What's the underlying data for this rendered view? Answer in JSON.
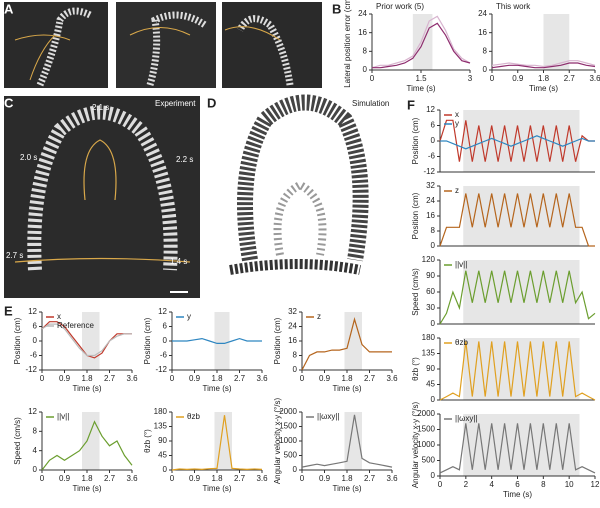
{
  "panel_labels": [
    "A",
    "B",
    "C",
    "D",
    "E",
    "F"
  ],
  "photos": {
    "experiment": "Experiment",
    "simulation": "Simulation",
    "times": [
      "2.1 s",
      "2.0 s",
      "2.2 s",
      "2.7 s",
      "1.4 s"
    ]
  },
  "chart_data": [
    {
      "type": "line",
      "title": "Prior work (5)",
      "ylabel": "Lateral position error (cm)",
      "xlabel": "Time (s)",
      "x": [
        0,
        0.25,
        0.5,
        0.75,
        1,
        1.25,
        1.5,
        1.75,
        2,
        2.25,
        2.5,
        2.75,
        3
      ],
      "xlim": [
        0,
        3
      ],
      "ylim": [
        0,
        24
      ],
      "xticks": [
        0,
        1.5,
        3
      ],
      "yticks": [
        0,
        8,
        16,
        24
      ],
      "shade": [
        1.25,
        1.85
      ],
      "series": [
        {
          "color": "#d8b4cf",
          "values": [
            1,
            2,
            2,
            3,
            4,
            6,
            12,
            21,
            23,
            17,
            9,
            5,
            3
          ]
        },
        {
          "color": "#8e2c6e",
          "values": [
            1,
            1,
            1.5,
            2,
            3,
            5,
            10,
            18,
            20,
            15,
            8,
            4,
            3
          ]
        }
      ]
    },
    {
      "type": "line",
      "title": "This work",
      "xlabel": "Time (s)",
      "x": [
        0,
        0.3,
        0.6,
        0.9,
        1.2,
        1.5,
        1.8,
        2.1,
        2.4,
        2.7,
        3,
        3.3,
        3.6
      ],
      "xlim": [
        0,
        3.6
      ],
      "ylim": [
        0,
        24
      ],
      "xticks": [
        0,
        0.9,
        1.8,
        2.7,
        3.6
      ],
      "yticks": [
        0,
        8,
        16,
        24
      ],
      "shade": [
        1.8,
        2.7
      ],
      "series": [
        {
          "color": "#d8b4cf",
          "values": [
            2,
            2.5,
            3,
            2.5,
            2,
            2,
            1.5,
            2,
            3,
            4,
            4,
            3,
            2
          ]
        },
        {
          "color": "#8e2c6e",
          "values": [
            1,
            1.5,
            2,
            2,
            1.5,
            1,
            1,
            1.5,
            2,
            3,
            3,
            2,
            1.5
          ]
        }
      ]
    },
    {
      "type": "line",
      "ylabel": "Position (cm)",
      "xlabel": "Time (s)",
      "x": [
        0,
        0.3,
        0.6,
        0.9,
        1.2,
        1.5,
        1.8,
        2.1,
        2.4,
        2.7,
        3,
        3.3,
        3.6
      ],
      "xlim": [
        0,
        3.6
      ],
      "ylim": [
        -12,
        12
      ],
      "xticks": [
        0,
        0.9,
        1.8,
        2.7,
        3.6
      ],
      "yticks": [
        -12,
        -6,
        0,
        6,
        12
      ],
      "shade": [
        1.6,
        2.3
      ],
      "series": [
        {
          "name": "x",
          "color": "#c0392b",
          "values": [
            5,
            8,
            8,
            6,
            2,
            -2,
            -6,
            -7,
            -5,
            0,
            3,
            3,
            3
          ]
        },
        {
          "name": "Reference",
          "color": "#bbbbbb",
          "values": [
            5,
            7,
            7,
            5,
            1,
            -3,
            -6,
            -6,
            -4,
            0,
            2,
            3,
            3
          ]
        }
      ]
    },
    {
      "type": "line",
      "ylabel": "Position (cm)",
      "xlabel": "Time (s)",
      "x": [
        0,
        0.3,
        0.6,
        0.9,
        1.2,
        1.5,
        1.8,
        2.1,
        2.4,
        2.7,
        3,
        3.3,
        3.6
      ],
      "xlim": [
        0,
        3.6
      ],
      "ylim": [
        -12,
        12
      ],
      "xticks": [
        0,
        0.9,
        1.8,
        2.7,
        3.6
      ],
      "yticks": [
        -12,
        -6,
        0,
        6,
        12
      ],
      "shade": [
        1.7,
        2.3
      ],
      "series": [
        {
          "name": "y",
          "color": "#2e86c1",
          "values": [
            0,
            0,
            0,
            0.5,
            1,
            0,
            -1,
            -1,
            0,
            1,
            0,
            0,
            0
          ]
        }
      ]
    },
    {
      "type": "line",
      "ylabel": "Position (cm)",
      "xlabel": "Time (s)",
      "x": [
        0,
        0.3,
        0.6,
        0.9,
        1.2,
        1.5,
        1.8,
        2.1,
        2.4,
        2.7,
        3,
        3.3,
        3.6
      ],
      "xlim": [
        0,
        3.6
      ],
      "ylim": [
        0,
        32
      ],
      "xticks": [
        0,
        0.9,
        1.8,
        2.7,
        3.6
      ],
      "yticks": [
        0,
        8,
        16,
        24,
        32
      ],
      "shade": [
        1.7,
        2.4
      ],
      "series": [
        {
          "name": "z",
          "color": "#b5651d",
          "values": [
            0,
            8,
            10,
            10,
            11,
            11,
            12,
            28,
            14,
            10,
            10,
            10,
            10
          ]
        }
      ]
    },
    {
      "type": "line",
      "ylabel": "Speed (cm/s)",
      "xlabel": "Time (s)",
      "x": [
        0,
        0.3,
        0.6,
        0.9,
        1.2,
        1.5,
        1.8,
        2.1,
        2.4,
        2.7,
        3,
        3.3,
        3.6
      ],
      "xlim": [
        0,
        3.6
      ],
      "ylim": [
        0,
        12
      ],
      "xticks": [
        0,
        0.9,
        1.8,
        2.7,
        3.6
      ],
      "yticks": [
        0,
        4,
        8,
        12
      ],
      "shade": [
        1.6,
        2.3
      ],
      "series": [
        {
          "name": "||v||",
          "color": "#6b9e2f",
          "values": [
            0,
            2,
            3,
            2,
            3,
            4,
            6,
            10,
            7,
            5,
            6,
            3,
            1
          ]
        }
      ]
    },
    {
      "type": "line",
      "ylabel": "θzb (°)",
      "xlabel": "Time (s)",
      "x": [
        0,
        0.3,
        0.6,
        0.9,
        1.2,
        1.5,
        1.8,
        2.1,
        2.4,
        2.7,
        3,
        3.3,
        3.6
      ],
      "xlim": [
        0,
        3.6
      ],
      "ylim": [
        0,
        180
      ],
      "xticks": [
        0,
        0.9,
        1.8,
        2.7,
        3.6
      ],
      "yticks": [
        0,
        45,
        90,
        135,
        180
      ],
      "shade": [
        1.7,
        2.4
      ],
      "series": [
        {
          "name": "θzb",
          "color": "#e0a020",
          "values": [
            0,
            3,
            2,
            3,
            2,
            4,
            5,
            170,
            5,
            3,
            2,
            3,
            2
          ]
        }
      ]
    },
    {
      "type": "line",
      "ylabel": "Angular velocity x-y (°/s)",
      "xlabel": "Time (s)",
      "x": [
        0,
        0.3,
        0.6,
        0.9,
        1.2,
        1.5,
        1.8,
        2.1,
        2.4,
        2.7,
        3,
        3.3,
        3.6
      ],
      "xlim": [
        0,
        3.6
      ],
      "ylim": [
        0,
        2000
      ],
      "xticks": [
        0,
        0.9,
        1.8,
        2.7,
        3.6
      ],
      "yticks": [
        0,
        500,
        1000,
        1500,
        2000
      ],
      "shade": [
        1.7,
        2.4
      ],
      "series": [
        {
          "name": "||ωxy||",
          "color": "#777777",
          "values": [
            100,
            150,
            200,
            150,
            200,
            250,
            300,
            1900,
            400,
            250,
            200,
            150,
            100
          ]
        }
      ]
    },
    {
      "type": "line",
      "ylabel": "Position (cm)",
      "x": [
        0,
        0.5,
        1,
        1.5,
        2,
        2.5,
        3,
        3.5,
        4,
        4.5,
        5,
        5.5,
        6,
        6.5,
        7,
        7.5,
        8,
        8.5,
        9,
        9.5,
        10,
        10.5,
        11,
        11.5,
        12
      ],
      "xlim": [
        0,
        12
      ],
      "ylim": [
        -12,
        12
      ],
      "yticks": [
        -12,
        -6,
        0,
        6,
        12
      ],
      "shade": [
        1.8,
        10.8
      ],
      "series": [
        {
          "name": "x",
          "color": "#c0392b",
          "values": [
            0,
            8,
            8,
            -8,
            8,
            -8,
            6,
            -8,
            6,
            -8,
            6,
            -8,
            6,
            -8,
            6,
            -8,
            6,
            -8,
            6,
            -8,
            6,
            -8,
            2,
            0,
            0
          ]
        },
        {
          "name": "y",
          "color": "#2e86c1",
          "values": [
            0,
            0,
            -1,
            -2,
            -3,
            -2,
            -1,
            0,
            1,
            0,
            -1,
            -2,
            -1,
            0,
            1,
            2,
            1,
            0,
            -1,
            -2,
            -1,
            0,
            1,
            0,
            0
          ]
        }
      ]
    },
    {
      "type": "line",
      "ylabel": "Position (cm)",
      "x": [
        0,
        0.5,
        1,
        1.5,
        2,
        2.5,
        3,
        3.5,
        4,
        4.5,
        5,
        5.5,
        6,
        6.5,
        7,
        7.5,
        8,
        8.5,
        9,
        9.5,
        10,
        10.5,
        11,
        11.5,
        12
      ],
      "xlim": [
        0,
        12
      ],
      "ylim": [
        0,
        32
      ],
      "yticks": [
        0,
        8,
        16,
        24,
        32
      ],
      "shade": [
        1.8,
        10.8
      ],
      "series": [
        {
          "name": "z",
          "color": "#b5651d",
          "values": [
            0,
            10,
            10,
            10,
            28,
            10,
            28,
            10,
            28,
            10,
            28,
            10,
            28,
            10,
            28,
            10,
            28,
            10,
            28,
            10,
            28,
            10,
            10,
            0,
            0
          ]
        }
      ]
    },
    {
      "type": "line",
      "ylabel": "Speed (cm/s)",
      "x": [
        0,
        0.5,
        1,
        1.5,
        2,
        2.5,
        3,
        3.5,
        4,
        4.5,
        5,
        5.5,
        6,
        6.5,
        7,
        7.5,
        8,
        8.5,
        9,
        9.5,
        10,
        10.5,
        11,
        11.5,
        12
      ],
      "xlim": [
        0,
        12
      ],
      "ylim": [
        0,
        120
      ],
      "yticks": [
        0,
        30,
        60,
        90,
        120
      ],
      "shade": [
        1.8,
        10.8
      ],
      "series": [
        {
          "name": "||v||",
          "color": "#6b9e2f",
          "values": [
            0,
            20,
            60,
            30,
            100,
            40,
            100,
            40,
            100,
            40,
            100,
            40,
            100,
            40,
            100,
            40,
            100,
            40,
            100,
            40,
            100,
            40,
            60,
            10,
            20
          ]
        }
      ]
    },
    {
      "type": "line",
      "ylabel": "θzb (°)",
      "x": [
        0,
        0.5,
        1,
        1.5,
        2,
        2.5,
        3,
        3.5,
        4,
        4.5,
        5,
        5.5,
        6,
        6.5,
        7,
        7.5,
        8,
        8.5,
        9,
        9.5,
        10,
        10.5,
        11,
        11.5,
        12
      ],
      "xlim": [
        0,
        12
      ],
      "ylim": [
        0,
        180
      ],
      "yticks": [
        0,
        45,
        90,
        135,
        180
      ],
      "shade": [
        1.8,
        10.8
      ],
      "series": [
        {
          "name": "θzb",
          "color": "#e0a020",
          "values": [
            0,
            10,
            20,
            10,
            170,
            10,
            170,
            10,
            170,
            10,
            170,
            10,
            170,
            10,
            170,
            10,
            170,
            10,
            170,
            10,
            170,
            10,
            20,
            10,
            0
          ]
        }
      ]
    },
    {
      "type": "line",
      "ylabel": "Angular velocity x-y (°/s)",
      "xlabel": "Time (s)",
      "x": [
        0,
        0.5,
        1,
        1.5,
        2,
        2.5,
        3,
        3.5,
        4,
        4.5,
        5,
        5.5,
        6,
        6.5,
        7,
        7.5,
        8,
        8.5,
        9,
        9.5,
        10,
        10.5,
        11,
        11.5,
        12
      ],
      "xlim": [
        0,
        12
      ],
      "ylim": [
        0,
        2000
      ],
      "xticks": [
        0,
        2,
        4,
        6,
        8,
        10,
        12
      ],
      "yticks": [
        0,
        500,
        1000,
        1500,
        2000
      ],
      "shade": [
        1.8,
        10.8
      ],
      "series": [
        {
          "name": "||ωxy||",
          "color": "#777777",
          "values": [
            100,
            200,
            300,
            200,
            1700,
            200,
            1700,
            200,
            1700,
            200,
            1700,
            200,
            1700,
            200,
            1700,
            200,
            1700,
            200,
            1700,
            200,
            1700,
            200,
            300,
            200,
            100
          ]
        }
      ]
    }
  ]
}
